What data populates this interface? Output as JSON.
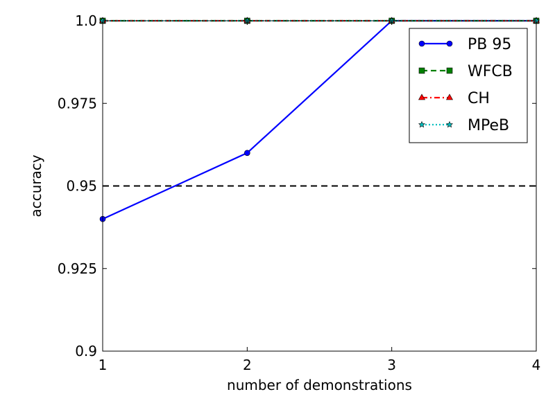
{
  "chart_data": {
    "type": "line",
    "title": "",
    "xlabel": "number of demonstrations",
    "ylabel": "accuracy",
    "x": [
      1,
      2,
      3,
      4
    ],
    "xlim": [
      1,
      4
    ],
    "ylim": [
      0.9,
      1.0
    ],
    "xticks": [
      "1",
      "2",
      "3",
      "4"
    ],
    "yticks": [
      "0.9",
      "0.925",
      "0.95",
      "0.975",
      "1.0"
    ],
    "ytick_values": [
      0.9,
      0.925,
      0.95,
      0.975,
      1.0
    ],
    "grid": false,
    "legend_position": "top-right",
    "reference_line": {
      "y": 0.95,
      "color": "#000000",
      "style": "dashed"
    },
    "series": [
      {
        "name": "PB 95",
        "values": [
          0.94,
          0.96,
          1.0,
          1.0
        ],
        "color": "#0000ff",
        "marker": "circle",
        "style": "solid"
      },
      {
        "name": "WFCB",
        "values": [
          1.0,
          1.0,
          1.0,
          1.0
        ],
        "color": "#008000",
        "marker": "square",
        "style": "dashed"
      },
      {
        "name": "CH",
        "values": [
          1.0,
          1.0,
          1.0,
          1.0
        ],
        "color": "#ff0000",
        "marker": "triangle",
        "style": "dashdot"
      },
      {
        "name": "MPeB",
        "values": [
          1.0,
          1.0,
          1.0,
          1.0
        ],
        "color": "#00bfbf",
        "marker": "star",
        "style": "dotted"
      }
    ]
  }
}
